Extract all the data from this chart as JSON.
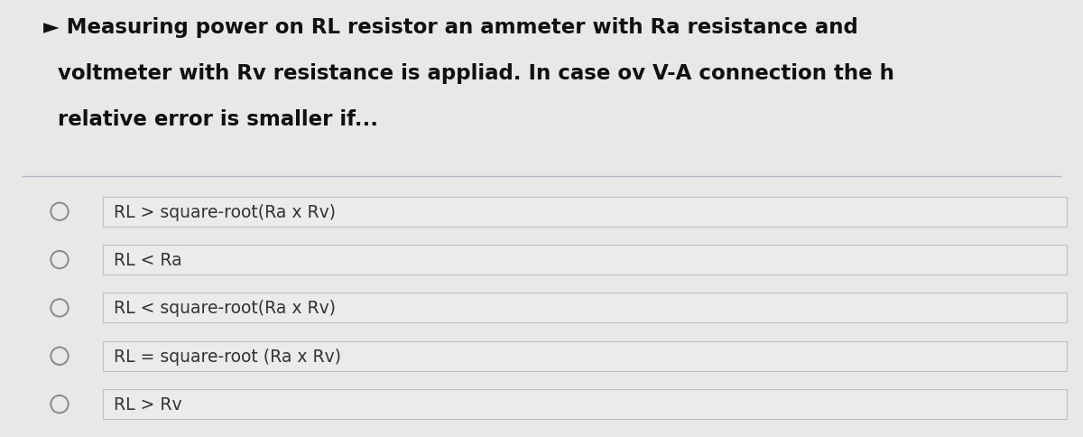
{
  "background_color": "#e8e8e8",
  "question_text_lines": [
    "► Measuring power on RL resistor an ammeter with Ra resistance and",
    "  voltmeter with Rv resistance is appliad. In case ov V-A connection the h",
    "  relative error is smaller if..."
  ],
  "options": [
    "RL > square-root(Ra x Rv)",
    "RL < Ra",
    "RL < square-root(Ra x Rv)",
    "RL = square-root (Ra x Rv)",
    "RL > Rv"
  ],
  "option_box_facecolor": "#ebebeb",
  "option_box_edgecolor": "#c0c0c0",
  "option_text_color": "#333333",
  "question_text_color": "#111111",
  "separator_color": "#b0b8c8",
  "circle_edge_color": "#888888",
  "title_fontsize": 16.5,
  "option_fontsize": 13.5,
  "fig_width": 12.0,
  "fig_height": 4.85,
  "dpi": 100
}
